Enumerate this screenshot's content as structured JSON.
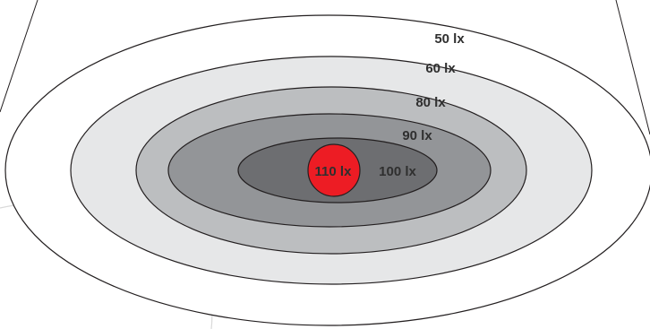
{
  "zones": [
    {
      "label": "50 lx",
      "fill": "#ffffff"
    },
    {
      "label": "60 lx",
      "fill": "#e6e7e8"
    },
    {
      "label": "80 lx",
      "fill": "#bcbec0"
    },
    {
      "label": "90 lx",
      "fill": "#939598"
    },
    {
      "label": "100 lx",
      "fill": "#6d6e71"
    }
  ],
  "center": {
    "label": "110 lx",
    "fill": "#ed1c24"
  },
  "colors": {
    "outline": "#231f20",
    "guide_arc": "#d9d9d9"
  }
}
